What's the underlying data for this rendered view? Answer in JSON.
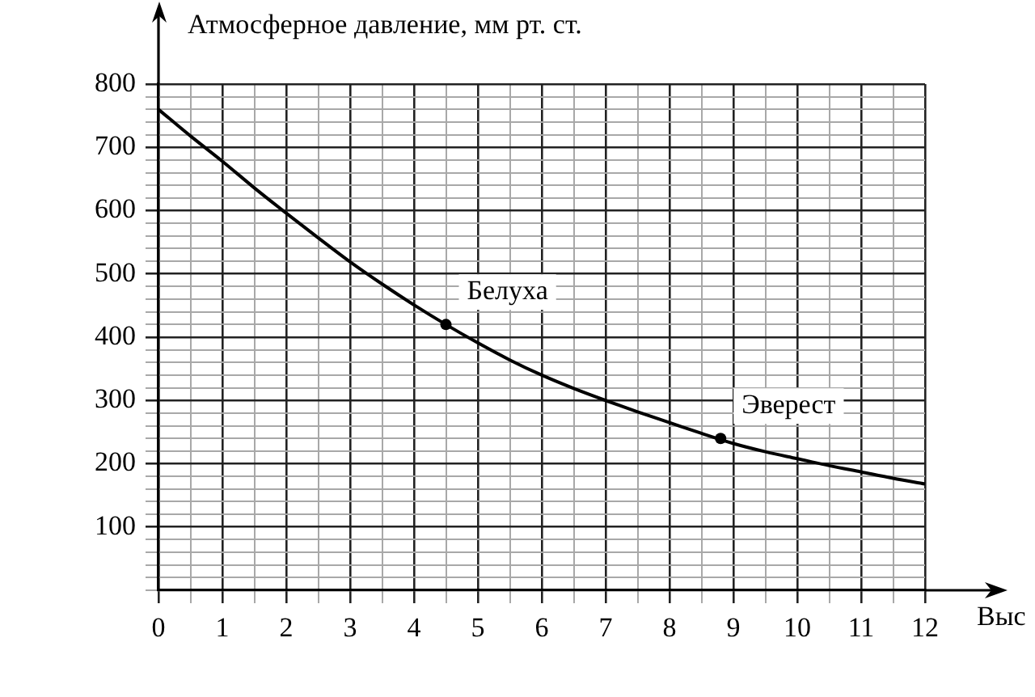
{
  "chart_data": {
    "type": "line",
    "ylabel": "Атмосферное давление, мм рт. ст.",
    "xlabel": "Выс",
    "xlim": [
      0,
      12
    ],
    "ylim": [
      0,
      800
    ],
    "xticks": [
      0,
      {
        "value": 0.5,
        "label": null
      },
      1,
      {
        "value": 1.5,
        "label": null
      },
      2,
      {
        "value": 2.5,
        "label": null
      },
      3,
      {
        "value": 3.5,
        "label": null
      },
      4,
      {
        "value": 4.5,
        "label": null
      },
      5,
      {
        "value": 5.5,
        "label": null
      },
      6,
      {
        "value": 6.5,
        "label": null
      },
      7,
      {
        "value": 7.5,
        "label": null
      },
      8,
      {
        "value": 8.5,
        "label": null
      },
      9,
      {
        "value": 9.5,
        "label": null
      },
      10,
      {
        "value": 10.5,
        "label": null
      },
      11,
      {
        "value": 11.5,
        "label": null
      },
      12
    ],
    "yticks": [
      {
        "value": 0,
        "label": null
      },
      {
        "value": 20,
        "label": null
      },
      {
        "value": 40,
        "label": null
      },
      {
        "value": 60,
        "label": null
      },
      {
        "value": 80,
        "label": null
      },
      100,
      {
        "value": 120,
        "label": null
      },
      {
        "value": 140,
        "label": null
      },
      {
        "value": 160,
        "label": null
      },
      {
        "value": 180,
        "label": null
      },
      200,
      {
        "value": 220,
        "label": null
      },
      {
        "value": 240,
        "label": null
      },
      {
        "value": 260,
        "label": null
      },
      {
        "value": 280,
        "label": null
      },
      300,
      {
        "value": 320,
        "label": null
      },
      {
        "value": 340,
        "label": null
      },
      {
        "value": 360,
        "label": null
      },
      {
        "value": 380,
        "label": null
      },
      400,
      {
        "value": 420,
        "label": null
      },
      {
        "value": 440,
        "label": null
      },
      {
        "value": 460,
        "label": null
      },
      {
        "value": 480,
        "label": null
      },
      500,
      {
        "value": 520,
        "label": null
      },
      {
        "value": 540,
        "label": null
      },
      {
        "value": 560,
        "label": null
      },
      {
        "value": 580,
        "label": null
      },
      600,
      {
        "value": 620,
        "label": null
      },
      {
        "value": 640,
        "label": null
      },
      {
        "value": 660,
        "label": null
      },
      {
        "value": 680,
        "label": null
      },
      700,
      {
        "value": 720,
        "label": null
      },
      {
        "value": 740,
        "label": null
      },
      {
        "value": 760,
        "label": null
      },
      {
        "value": 780,
        "label": null
      },
      800
    ],
    "grid": true,
    "series": [
      {
        "color": "#000000",
        "marker": "none",
        "x": [
          0,
          0.5,
          1,
          1.5,
          2,
          2.5,
          3,
          3.5,
          4,
          4.5,
          5,
          5.5,
          6,
          6.5,
          7,
          7.5,
          8,
          8.5,
          9,
          9.5,
          10,
          10.5,
          11,
          11.5,
          12
        ],
        "values": [
          760,
          718,
          678,
          636,
          596,
          557,
          519,
          484,
          451,
          420,
          391,
          364,
          340,
          319,
          300,
          282,
          265,
          248,
          232,
          219,
          208,
          197,
          187,
          177,
          168
        ]
      },
      {
        "type": "scatter",
        "color": "#000000",
        "marker": "circle",
        "x": [
          4.5,
          8.8
        ],
        "values": [
          420,
          240
        ]
      }
    ],
    "annotations": [
      {
        "text": "Белуха",
        "x": 4.5,
        "y": 420
      },
      {
        "text": "Эверест",
        "x": 8.8,
        "y": 240
      }
    ]
  }
}
